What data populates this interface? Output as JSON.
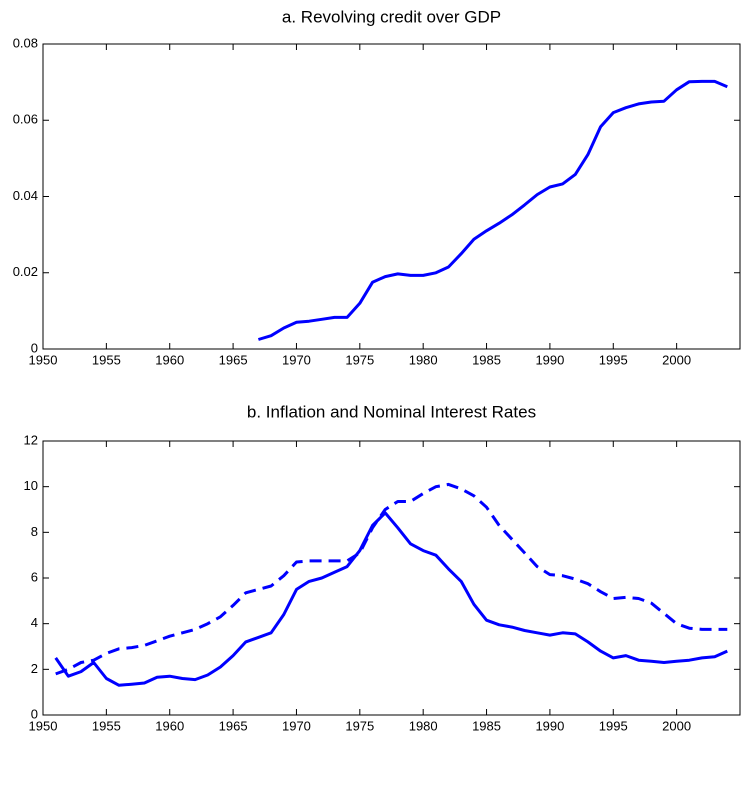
{
  "chart_data": [
    {
      "type": "line",
      "title": "a. Revolving credit over GDP",
      "x": [
        1967,
        1968,
        1969,
        1970,
        1971,
        1972,
        1973,
        1974,
        1975,
        1976,
        1977,
        1978,
        1979,
        1980,
        1981,
        1982,
        1983,
        1984,
        1985,
        1986,
        1987,
        1988,
        1989,
        1990,
        1991,
        1992,
        1993,
        1994,
        1995,
        1996,
        1997,
        1998,
        1999,
        2000,
        2001,
        2002,
        2003,
        2004
      ],
      "series": [
        {
          "color": "#0000ff",
          "dashed": false,
          "values": [
            0.0025,
            0.0035,
            0.0055,
            0.007,
            0.0073,
            0.0078,
            0.0083,
            0.0083,
            0.012,
            0.0175,
            0.019,
            0.0197,
            0.0193,
            0.0193,
            0.02,
            0.0215,
            0.025,
            0.0288,
            0.031,
            0.033,
            0.0352,
            0.0378,
            0.0405,
            0.0425,
            0.0433,
            0.0458,
            0.051,
            0.0583,
            0.062,
            0.0633,
            0.0643,
            0.0648,
            0.065,
            0.068,
            0.0701,
            0.0702,
            0.0702,
            0.0688
          ]
        }
      ],
      "xlim": [
        1950,
        2005
      ],
      "xticks": [
        1950,
        1955,
        1960,
        1965,
        1970,
        1975,
        1980,
        1985,
        1990,
        1995,
        2000
      ],
      "ylim": [
        0,
        0.08
      ],
      "yticks": [
        0,
        0.02,
        0.04,
        0.06,
        0.08
      ],
      "grid": false
    },
    {
      "type": "line",
      "title": "b. Inflation and Nominal Interest Rates",
      "x": [
        1951,
        1952,
        1953,
        1954,
        1955,
        1956,
        1957,
        1958,
        1959,
        1960,
        1961,
        1962,
        1963,
        1964,
        1965,
        1966,
        1967,
        1968,
        1969,
        1970,
        1971,
        1972,
        1973,
        1974,
        1975,
        1976,
        1977,
        1978,
        1979,
        1980,
        1981,
        1982,
        1983,
        1984,
        1985,
        1986,
        1987,
        1988,
        1989,
        1990,
        1991,
        1992,
        1993,
        1994,
        1995,
        1996,
        1997,
        1998,
        1999,
        2000,
        2001,
        2002,
        2003,
        2004
      ],
      "series": [
        {
          "color": "#0000ff",
          "dashed": false,
          "values": [
            2.5,
            1.7,
            1.9,
            2.3,
            1.6,
            1.3,
            1.35,
            1.4,
            1.65,
            1.7,
            1.6,
            1.55,
            1.75,
            2.1,
            2.6,
            3.2,
            3.4,
            3.6,
            4.4,
            5.5,
            5.85,
            6.0,
            6.25,
            6.5,
            7.2,
            8.3,
            8.85,
            8.2,
            7.5,
            7.2,
            7.0,
            6.4,
            5.85,
            4.85,
            4.15,
            3.95,
            3.85,
            3.7,
            3.6,
            3.5,
            3.6,
            3.55,
            3.2,
            2.8,
            2.5,
            2.6,
            2.4,
            2.35,
            2.3,
            2.35,
            2.4,
            2.5,
            2.55,
            2.8
          ]
        },
        {
          "color": "#0000ff",
          "dashed": true,
          "values": [
            1.8,
            2.0,
            2.3,
            2.4,
            2.7,
            2.9,
            2.95,
            3.05,
            3.25,
            3.45,
            3.6,
            3.75,
            4.0,
            4.3,
            4.8,
            5.35,
            5.5,
            5.65,
            6.1,
            6.7,
            6.75,
            6.75,
            6.75,
            6.75,
            7.1,
            8.2,
            9.0,
            9.35,
            9.35,
            9.7,
            10.0,
            10.1,
            9.9,
            9.6,
            9.1,
            8.3,
            7.7,
            7.1,
            6.5,
            6.15,
            6.1,
            5.95,
            5.75,
            5.4,
            5.1,
            5.15,
            5.1,
            4.9,
            4.45,
            4.0,
            3.8,
            3.75,
            3.75,
            3.75
          ]
        }
      ],
      "xlim": [
        1950,
        2005
      ],
      "xticks": [
        1950,
        1955,
        1960,
        1965,
        1970,
        1975,
        1980,
        1985,
        1990,
        1995,
        2000
      ],
      "ylim": [
        0,
        12
      ],
      "yticks": [
        0,
        2,
        4,
        6,
        8,
        10,
        12
      ],
      "grid": false
    }
  ]
}
